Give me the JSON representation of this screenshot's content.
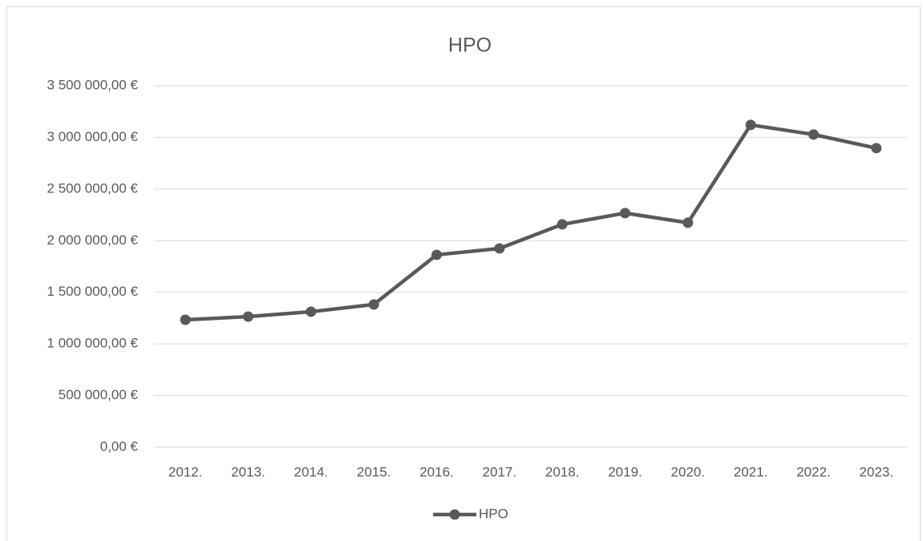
{
  "chart_data": {
    "type": "line",
    "title": "HPO",
    "categories": [
      "2012.",
      "2013.",
      "2014.",
      "2015.",
      "2016.",
      "2017.",
      "2018.",
      "2019.",
      "2020.",
      "2021.",
      "2022.",
      "2023."
    ],
    "series": [
      {
        "name": "HPO",
        "color": "#595959",
        "values": [
          1234000,
          1265000,
          1312000,
          1382000,
          1863000,
          1925000,
          2158000,
          2267000,
          2174000,
          3121000,
          3028000,
          2896000
        ]
      }
    ],
    "ylim": [
      0,
      3500000
    ],
    "yticks": [
      {
        "value": 0,
        "label": "0,00 €"
      },
      {
        "value": 500000,
        "label": "500 000,00 €"
      },
      {
        "value": 1000000,
        "label": "1 000 000,00 €"
      },
      {
        "value": 1500000,
        "label": "1 500 000,00 €"
      },
      {
        "value": 2000000,
        "label": "2 000 000,00 €"
      },
      {
        "value": 2500000,
        "label": "2 500 000,00 €"
      },
      {
        "value": 3000000,
        "label": "3 000 000,00 €"
      },
      {
        "value": 3500000,
        "label": "3 500 000,00 €"
      }
    ],
    "grid": true,
    "legend": "bottom"
  }
}
